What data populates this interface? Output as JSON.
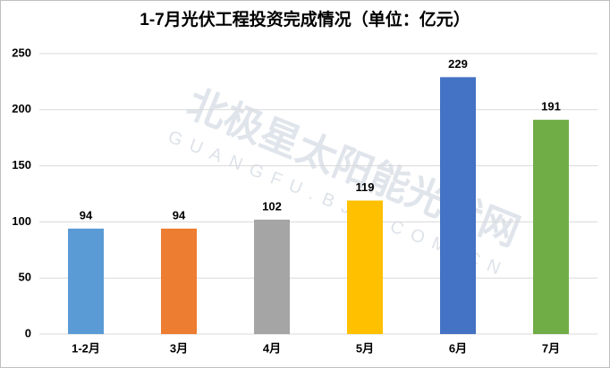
{
  "chart_data": {
    "type": "bar",
    "title": "1-7月光伏工程投资完成情况（单位：亿元）",
    "categories": [
      "1-2月",
      "3月",
      "4月",
      "5月",
      "6月",
      "7月"
    ],
    "values": [
      94,
      94,
      102,
      119,
      229,
      191
    ],
    "colors": [
      "#5b9bd5",
      "#ed7d31",
      "#a5a5a5",
      "#ffc000",
      "#4472c4",
      "#70ad47"
    ],
    "ylim": [
      0,
      250
    ],
    "yticks": [
      0,
      50,
      100,
      150,
      200,
      250
    ],
    "grid": true,
    "watermark": "北极星太阳能光伏网",
    "watermark_subtitle": "GUANGFU.BJX.COM.CN"
  }
}
